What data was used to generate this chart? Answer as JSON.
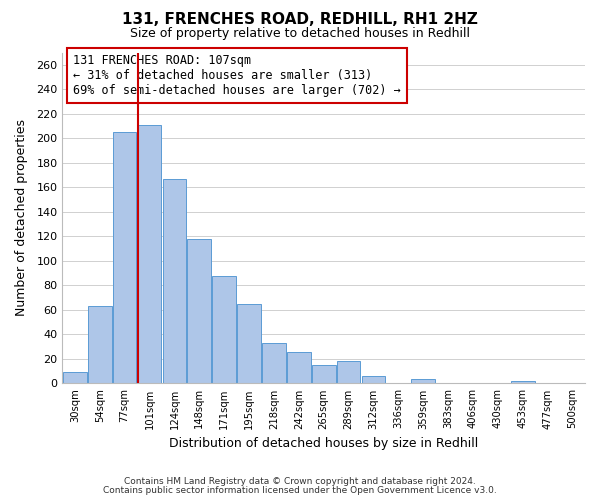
{
  "title": "131, FRENCHES ROAD, REDHILL, RH1 2HZ",
  "subtitle": "Size of property relative to detached houses in Redhill",
  "xlabel": "Distribution of detached houses by size in Redhill",
  "ylabel": "Number of detached properties",
  "bar_labels": [
    "30sqm",
    "54sqm",
    "77sqm",
    "101sqm",
    "124sqm",
    "148sqm",
    "171sqm",
    "195sqm",
    "218sqm",
    "242sqm",
    "265sqm",
    "289sqm",
    "312sqm",
    "336sqm",
    "359sqm",
    "383sqm",
    "406sqm",
    "430sqm",
    "453sqm",
    "477sqm",
    "500sqm"
  ],
  "bar_values": [
    9,
    63,
    205,
    211,
    167,
    118,
    88,
    65,
    33,
    26,
    15,
    18,
    6,
    0,
    4,
    0,
    0,
    0,
    2,
    0,
    0
  ],
  "bar_color": "#aec6e8",
  "bar_edge_color": "#5b9bd5",
  "highlight_index": 3,
  "vline_color": "#cc0000",
  "ylim": [
    0,
    270
  ],
  "yticks": [
    0,
    20,
    40,
    60,
    80,
    100,
    120,
    140,
    160,
    180,
    200,
    220,
    240,
    260
  ],
  "annotation_title": "131 FRENCHES ROAD: 107sqm",
  "annotation_line1": "← 31% of detached houses are smaller (313)",
  "annotation_line2": "69% of semi-detached houses are larger (702) →",
  "annotation_box_color": "#ffffff",
  "annotation_box_edge": "#cc0000",
  "footer1": "Contains HM Land Registry data © Crown copyright and database right 2024.",
  "footer2": "Contains public sector information licensed under the Open Government Licence v3.0.",
  "background_color": "#ffffff",
  "grid_color": "#d0d0d0"
}
